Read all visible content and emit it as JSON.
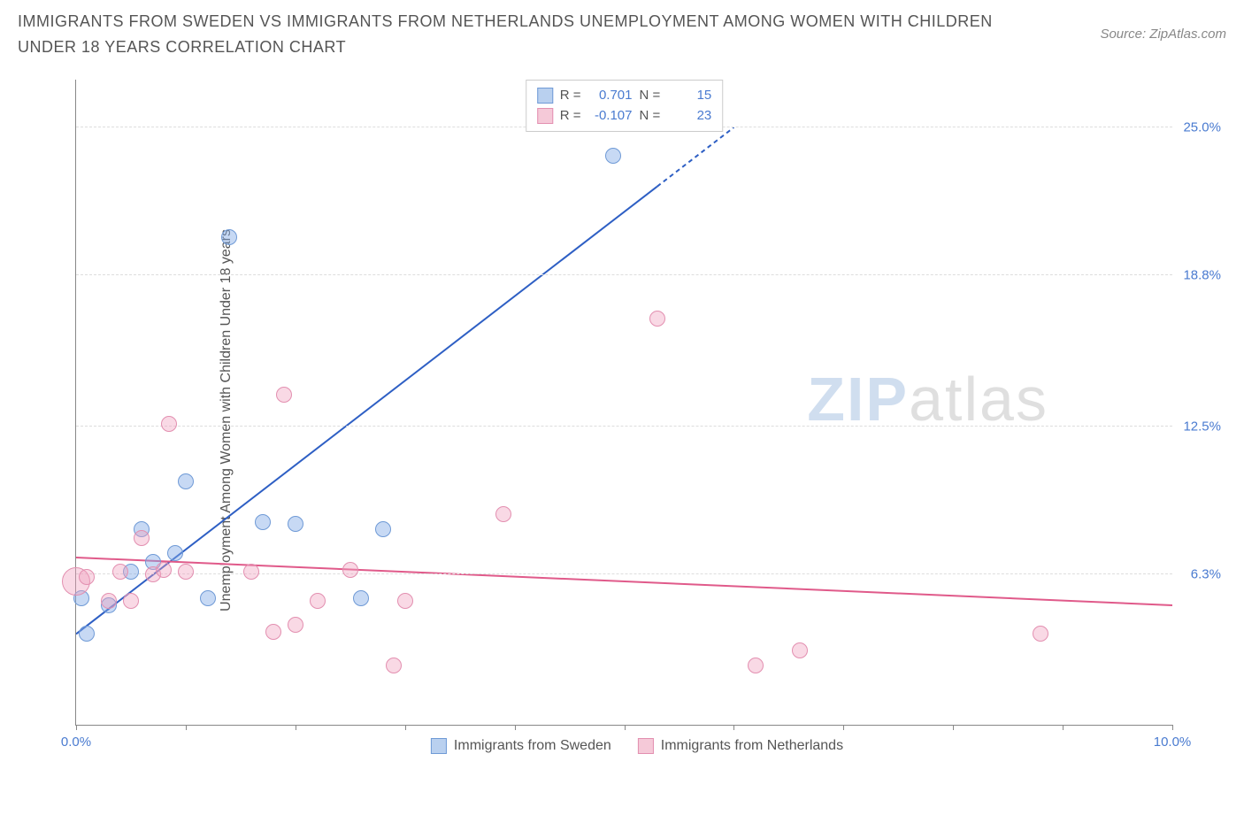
{
  "title": "IMMIGRANTS FROM SWEDEN VS IMMIGRANTS FROM NETHERLANDS UNEMPLOYMENT AMONG WOMEN WITH CHILDREN UNDER 18 YEARS CORRELATION CHART",
  "source_label": "Source: ZipAtlas.com",
  "watermark": {
    "part1": "ZIP",
    "part2": "atlas"
  },
  "chart": {
    "type": "scatter",
    "background_color": "#ffffff",
    "grid_color": "#dddddd",
    "axis_color": "#888888",
    "ylabel": "Unemployment Among Women with Children Under 18 years",
    "ylabel_fontsize": 16,
    "ylabel_color": "#555555",
    "xlim": [
      0.0,
      10.0
    ],
    "ylim": [
      0.0,
      27.0
    ],
    "ytick_values": [
      6.3,
      12.5,
      18.8,
      25.0
    ],
    "ytick_labels": [
      "6.3%",
      "12.5%",
      "18.8%",
      "25.0%"
    ],
    "ytick_color": "#4a7bd0",
    "xtick_values": [
      0.0,
      1.0,
      2.0,
      3.0,
      4.0,
      5.0,
      6.0,
      7.0,
      8.0,
      9.0,
      10.0
    ],
    "xtick_labels": {
      "0.0": "0.0%",
      "10.0": "10.0%"
    },
    "xtick_color": "#4a7bd0",
    "marker_radius_default": 9,
    "marker_stroke_width": 1,
    "series": [
      {
        "name": "Immigrants from Sweden",
        "fill_color": "rgba(130,170,230,0.45)",
        "stroke_color": "#6f9ad6",
        "swatch_fill": "#b9d0ef",
        "swatch_border": "#6f9ad6",
        "R": "0.701",
        "N": "15",
        "trend": {
          "x1": 0.0,
          "y1": 3.8,
          "x2": 6.0,
          "y2": 25.0,
          "color": "#2e5fc4",
          "width": 2,
          "dash_after_x": 5.3
        },
        "points": [
          {
            "x": 0.05,
            "y": 5.3
          },
          {
            "x": 0.1,
            "y": 3.8
          },
          {
            "x": 0.3,
            "y": 5.0
          },
          {
            "x": 0.5,
            "y": 6.4
          },
          {
            "x": 0.6,
            "y": 8.2
          },
          {
            "x": 0.7,
            "y": 6.8
          },
          {
            "x": 0.9,
            "y": 7.2
          },
          {
            "x": 1.0,
            "y": 10.2
          },
          {
            "x": 1.2,
            "y": 5.3
          },
          {
            "x": 1.4,
            "y": 20.4
          },
          {
            "x": 1.7,
            "y": 8.5
          },
          {
            "x": 2.0,
            "y": 8.4
          },
          {
            "x": 2.6,
            "y": 5.3
          },
          {
            "x": 2.8,
            "y": 8.2
          },
          {
            "x": 4.9,
            "y": 23.8
          }
        ]
      },
      {
        "name": "Immigrants from Netherlands",
        "fill_color": "rgba(240,160,190,0.4)",
        "stroke_color": "#e38fb0",
        "swatch_fill": "#f5c9d8",
        "swatch_border": "#e38fb0",
        "R": "-0.107",
        "N": "23",
        "trend": {
          "x1": 0.0,
          "y1": 7.0,
          "x2": 10.0,
          "y2": 5.0,
          "color": "#e05a8a",
          "width": 2
        },
        "points": [
          {
            "x": 0.0,
            "y": 6.0,
            "r": 16
          },
          {
            "x": 0.1,
            "y": 6.2
          },
          {
            "x": 0.3,
            "y": 5.2
          },
          {
            "x": 0.4,
            "y": 6.4
          },
          {
            "x": 0.5,
            "y": 5.2
          },
          {
            "x": 0.6,
            "y": 7.8
          },
          {
            "x": 0.7,
            "y": 6.3
          },
          {
            "x": 0.8,
            "y": 6.5
          },
          {
            "x": 0.85,
            "y": 12.6
          },
          {
            "x": 1.0,
            "y": 6.4
          },
          {
            "x": 1.6,
            "y": 6.4
          },
          {
            "x": 1.8,
            "y": 3.9
          },
          {
            "x": 1.9,
            "y": 13.8
          },
          {
            "x": 2.0,
            "y": 4.2
          },
          {
            "x": 2.2,
            "y": 5.2
          },
          {
            "x": 2.5,
            "y": 6.5
          },
          {
            "x": 2.9,
            "y": 2.5
          },
          {
            "x": 3.0,
            "y": 5.2
          },
          {
            "x": 3.9,
            "y": 8.8
          },
          {
            "x": 5.3,
            "y": 17.0
          },
          {
            "x": 6.2,
            "y": 2.5
          },
          {
            "x": 6.6,
            "y": 3.1
          },
          {
            "x": 8.8,
            "y": 3.8
          }
        ]
      }
    ],
    "legend_top": {
      "r_label": "R =",
      "n_label": "N ="
    },
    "legend_bottom_labels": [
      "Immigrants from Sweden",
      "Immigrants from Netherlands"
    ]
  }
}
